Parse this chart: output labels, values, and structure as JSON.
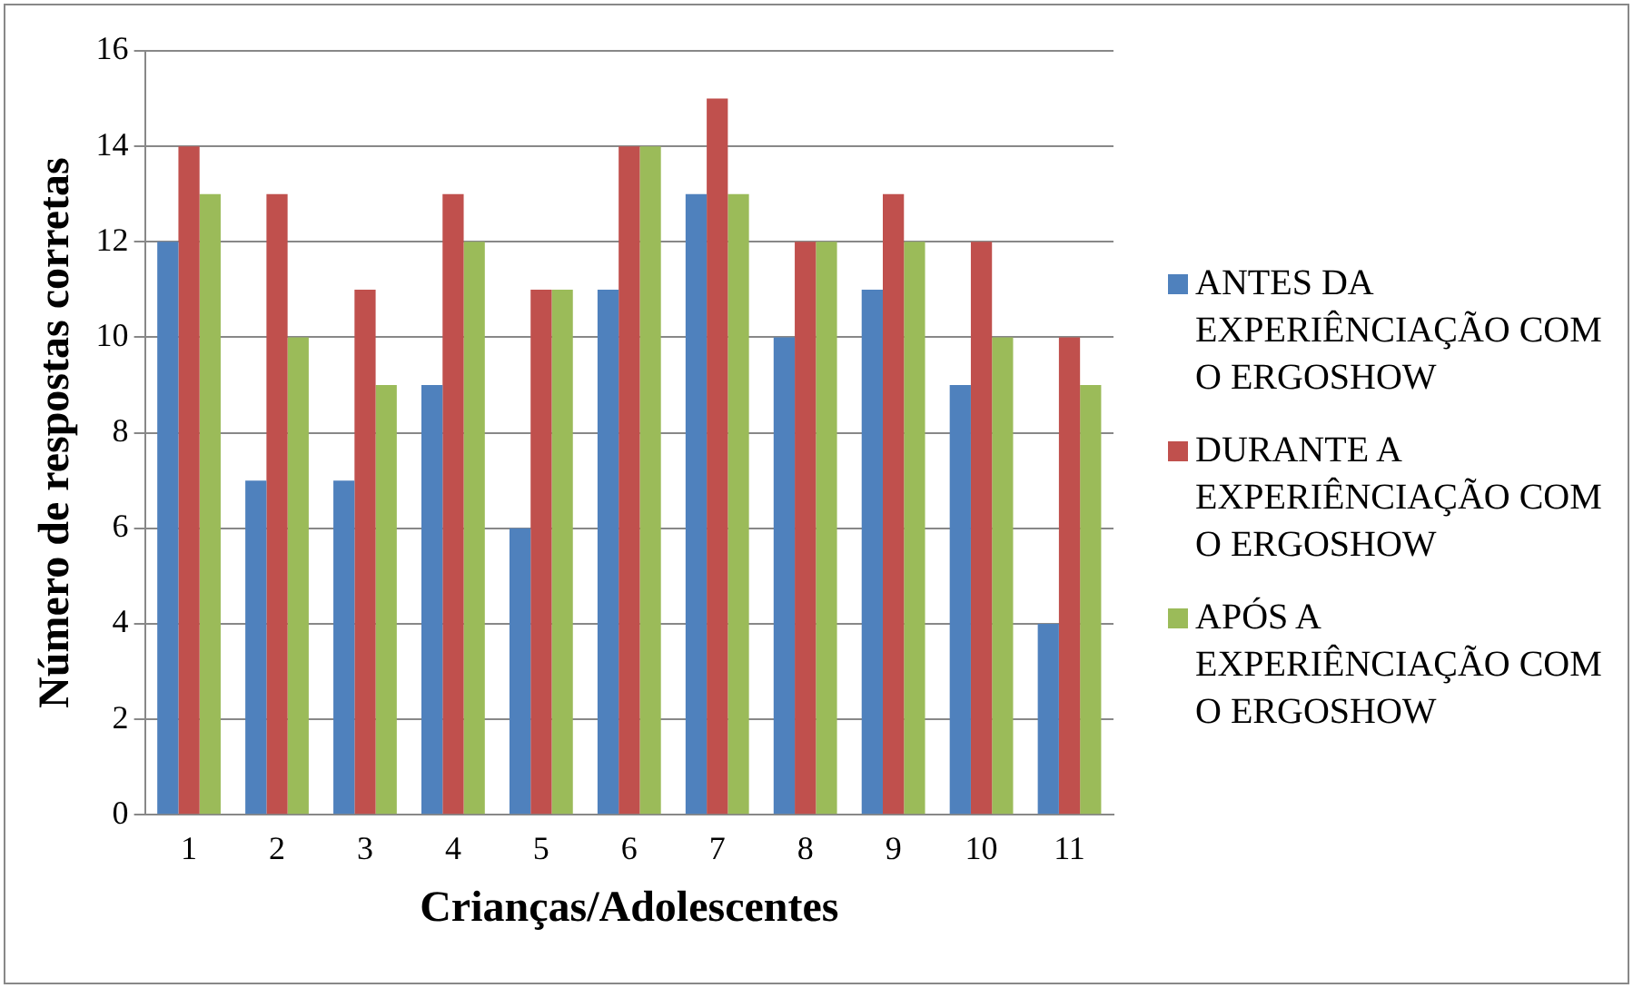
{
  "chart_data": {
    "type": "bar",
    "xlabel": "Crianças/Adolescentes",
    "ylabel": "Número de respostas corretas",
    "categories": [
      "1",
      "2",
      "3",
      "4",
      "5",
      "6",
      "7",
      "8",
      "9",
      "10",
      "11"
    ],
    "series": [
      {
        "name": "ANTES DA EXPERIÊNCIAÇÃO COM O ERGOSHOW",
        "color": "#4f81bd",
        "values": [
          12,
          7,
          7,
          9,
          6,
          11,
          13,
          10,
          11,
          9,
          4
        ]
      },
      {
        "name": "DURANTE A EXPERIÊNCIAÇÃO COM O ERGOSHOW",
        "color": "#c0504d",
        "values": [
          14,
          13,
          11,
          13,
          11,
          14,
          15,
          12,
          13,
          12,
          10
        ]
      },
      {
        "name": "APÓS A EXPERIÊNCIAÇÃO COM O ERGOSHOW",
        "color": "#9bbb59",
        "values": [
          13,
          10,
          9,
          12,
          11,
          14,
          13,
          12,
          12,
          10,
          9
        ]
      }
    ],
    "ylim": [
      0,
      16
    ],
    "yticks": [
      0,
      2,
      4,
      6,
      8,
      10,
      12,
      14,
      16
    ],
    "grid": "y",
    "legend": "right"
  }
}
